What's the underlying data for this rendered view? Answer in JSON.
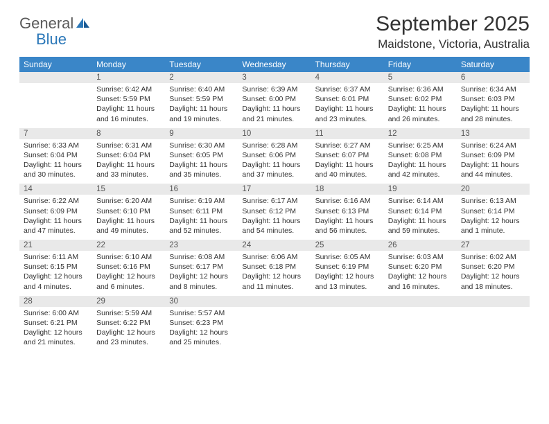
{
  "logo": {
    "part1": "General",
    "part2": "Blue"
  },
  "title": "September 2025",
  "location": "Maidstone, Victoria, Australia",
  "header_bg": "#3a86c8",
  "header_fg": "#ffffff",
  "rule_color": "#2a6ea8",
  "daynum_bg": "#e9e9e9",
  "days": [
    "Sunday",
    "Monday",
    "Tuesday",
    "Wednesday",
    "Thursday",
    "Friday",
    "Saturday"
  ],
  "weeks": [
    [
      null,
      {
        "n": "1",
        "sr": "6:42 AM",
        "ss": "5:59 PM",
        "d": "11 hours and 16 minutes."
      },
      {
        "n": "2",
        "sr": "6:40 AM",
        "ss": "5:59 PM",
        "d": "11 hours and 19 minutes."
      },
      {
        "n": "3",
        "sr": "6:39 AM",
        "ss": "6:00 PM",
        "d": "11 hours and 21 minutes."
      },
      {
        "n": "4",
        "sr": "6:37 AM",
        "ss": "6:01 PM",
        "d": "11 hours and 23 minutes."
      },
      {
        "n": "5",
        "sr": "6:36 AM",
        "ss": "6:02 PM",
        "d": "11 hours and 26 minutes."
      },
      {
        "n": "6",
        "sr": "6:34 AM",
        "ss": "6:03 PM",
        "d": "11 hours and 28 minutes."
      }
    ],
    [
      {
        "n": "7",
        "sr": "6:33 AM",
        "ss": "6:04 PM",
        "d": "11 hours and 30 minutes."
      },
      {
        "n": "8",
        "sr": "6:31 AM",
        "ss": "6:04 PM",
        "d": "11 hours and 33 minutes."
      },
      {
        "n": "9",
        "sr": "6:30 AM",
        "ss": "6:05 PM",
        "d": "11 hours and 35 minutes."
      },
      {
        "n": "10",
        "sr": "6:28 AM",
        "ss": "6:06 PM",
        "d": "11 hours and 37 minutes."
      },
      {
        "n": "11",
        "sr": "6:27 AM",
        "ss": "6:07 PM",
        "d": "11 hours and 40 minutes."
      },
      {
        "n": "12",
        "sr": "6:25 AM",
        "ss": "6:08 PM",
        "d": "11 hours and 42 minutes."
      },
      {
        "n": "13",
        "sr": "6:24 AM",
        "ss": "6:09 PM",
        "d": "11 hours and 44 minutes."
      }
    ],
    [
      {
        "n": "14",
        "sr": "6:22 AM",
        "ss": "6:09 PM",
        "d": "11 hours and 47 minutes."
      },
      {
        "n": "15",
        "sr": "6:20 AM",
        "ss": "6:10 PM",
        "d": "11 hours and 49 minutes."
      },
      {
        "n": "16",
        "sr": "6:19 AM",
        "ss": "6:11 PM",
        "d": "11 hours and 52 minutes."
      },
      {
        "n": "17",
        "sr": "6:17 AM",
        "ss": "6:12 PM",
        "d": "11 hours and 54 minutes."
      },
      {
        "n": "18",
        "sr": "6:16 AM",
        "ss": "6:13 PM",
        "d": "11 hours and 56 minutes."
      },
      {
        "n": "19",
        "sr": "6:14 AM",
        "ss": "6:14 PM",
        "d": "11 hours and 59 minutes."
      },
      {
        "n": "20",
        "sr": "6:13 AM",
        "ss": "6:14 PM",
        "d": "12 hours and 1 minute."
      }
    ],
    [
      {
        "n": "21",
        "sr": "6:11 AM",
        "ss": "6:15 PM",
        "d": "12 hours and 4 minutes."
      },
      {
        "n": "22",
        "sr": "6:10 AM",
        "ss": "6:16 PM",
        "d": "12 hours and 6 minutes."
      },
      {
        "n": "23",
        "sr": "6:08 AM",
        "ss": "6:17 PM",
        "d": "12 hours and 8 minutes."
      },
      {
        "n": "24",
        "sr": "6:06 AM",
        "ss": "6:18 PM",
        "d": "12 hours and 11 minutes."
      },
      {
        "n": "25",
        "sr": "6:05 AM",
        "ss": "6:19 PM",
        "d": "12 hours and 13 minutes."
      },
      {
        "n": "26",
        "sr": "6:03 AM",
        "ss": "6:20 PM",
        "d": "12 hours and 16 minutes."
      },
      {
        "n": "27",
        "sr": "6:02 AM",
        "ss": "6:20 PM",
        "d": "12 hours and 18 minutes."
      }
    ],
    [
      {
        "n": "28",
        "sr": "6:00 AM",
        "ss": "6:21 PM",
        "d": "12 hours and 21 minutes."
      },
      {
        "n": "29",
        "sr": "5:59 AM",
        "ss": "6:22 PM",
        "d": "12 hours and 23 minutes."
      },
      {
        "n": "30",
        "sr": "5:57 AM",
        "ss": "6:23 PM",
        "d": "12 hours and 25 minutes."
      },
      null,
      null,
      null,
      null
    ]
  ],
  "labels": {
    "sunrise": "Sunrise:",
    "sunset": "Sunset:",
    "daylight": "Daylight:"
  }
}
